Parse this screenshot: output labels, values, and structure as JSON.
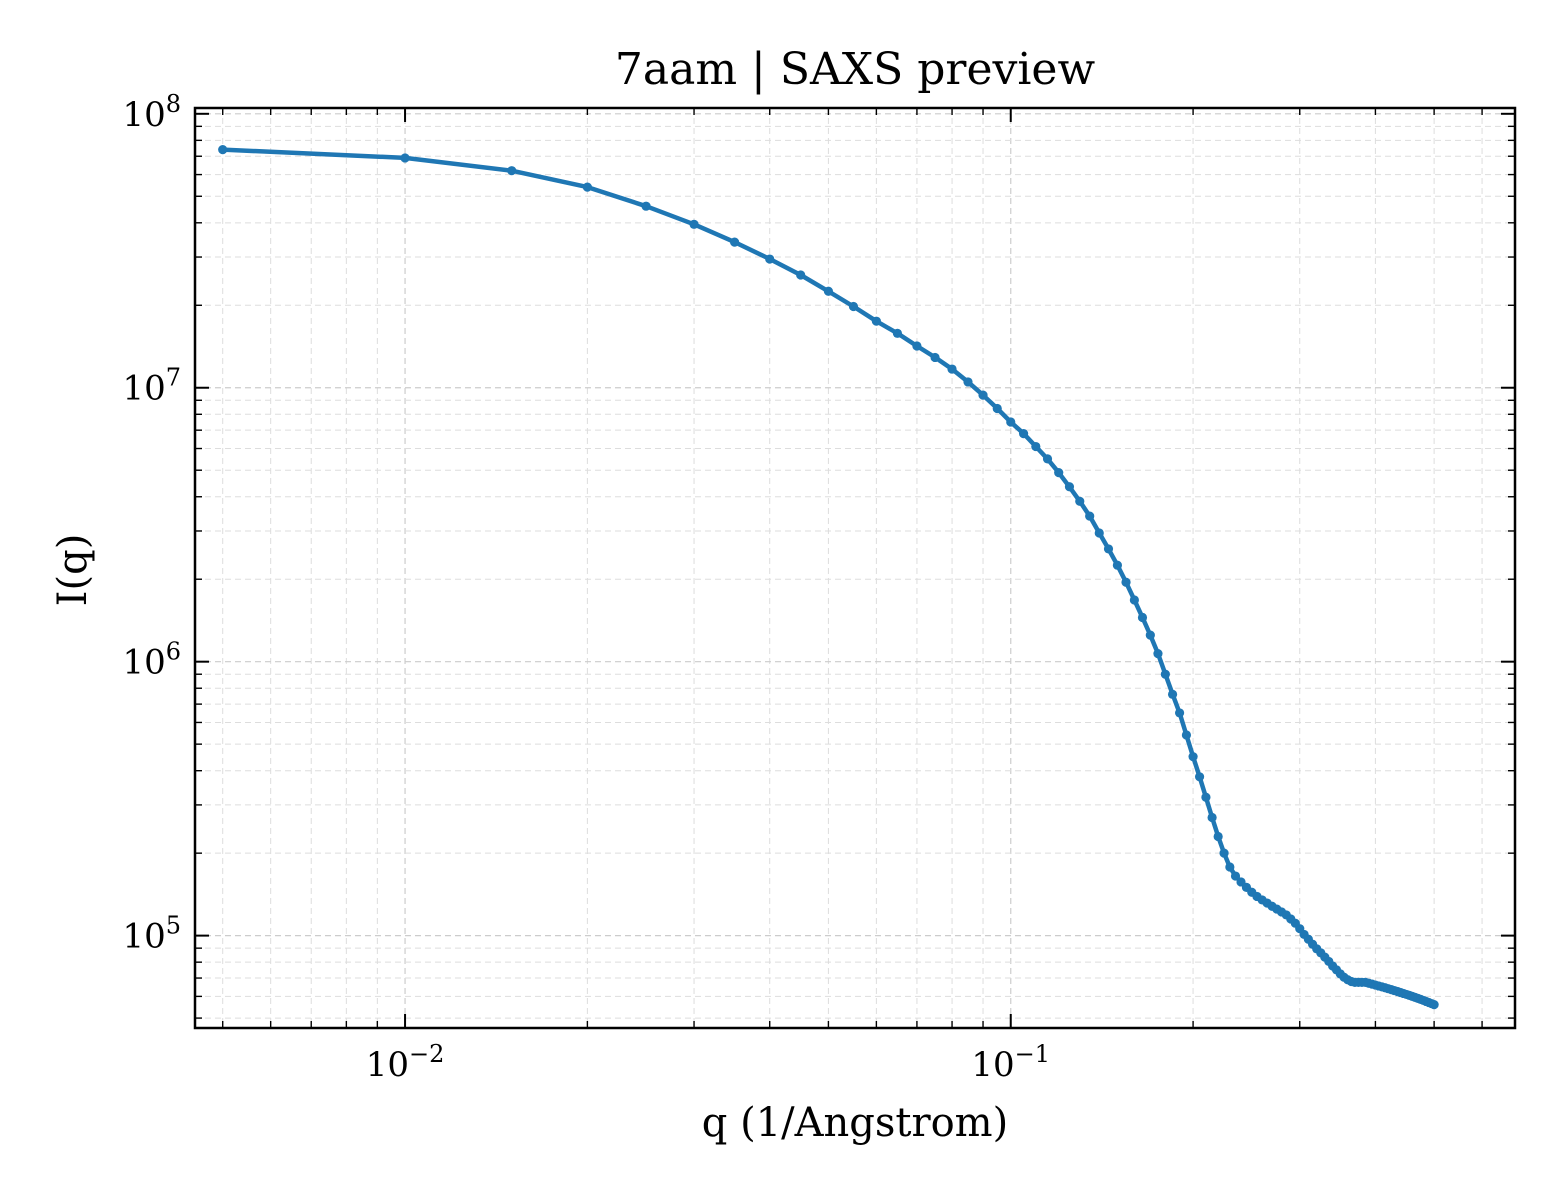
{
  "chart_data": {
    "type": "line",
    "title": "7aam | SAXS preview",
    "xlabel": "q (1/Angstrom)",
    "ylabel": "I(q)",
    "xscale": "log",
    "yscale": "log",
    "xlim": [
      0.0045,
      0.68
    ],
    "ylim": [
      46000,
      105000000
    ],
    "grid": true,
    "x_ticks": [
      {
        "value": 0.01,
        "base": "10",
        "exp": "−2"
      },
      {
        "value": 0.1,
        "base": "10",
        "exp": "−1"
      }
    ],
    "y_ticks": [
      {
        "value": 100000,
        "base": "10",
        "exp": "5"
      },
      {
        "value": 1000000,
        "base": "10",
        "exp": "6"
      },
      {
        "value": 10000000,
        "base": "10",
        "exp": "7"
      },
      {
        "value": 100000000,
        "base": "10",
        "exp": "8"
      }
    ],
    "series": [
      {
        "color": "#1f77b4",
        "x": [
          0.005,
          0.01,
          0.015,
          0.02,
          0.025,
          0.03,
          0.035,
          0.04,
          0.045,
          0.05,
          0.055,
          0.06,
          0.065,
          0.07,
          0.075,
          0.08,
          0.085,
          0.09,
          0.095,
          0.1,
          0.105,
          0.11,
          0.115,
          0.12,
          0.125,
          0.13,
          0.135,
          0.14,
          0.145,
          0.15,
          0.155,
          0.16,
          0.165,
          0.17,
          0.175,
          0.18,
          0.185,
          0.19,
          0.195,
          0.2,
          0.205,
          0.21,
          0.215,
          0.22,
          0.225,
          0.23,
          0.235,
          0.24,
          0.245,
          0.25,
          0.255,
          0.26,
          0.265,
          0.27,
          0.275,
          0.28,
          0.285,
          0.29,
          0.295,
          0.3,
          0.305,
          0.31,
          0.315,
          0.32,
          0.325,
          0.33,
          0.335,
          0.34,
          0.345,
          0.35,
          0.355,
          0.36,
          0.365,
          0.37,
          0.375,
          0.38,
          0.385,
          0.39,
          0.395,
          0.4,
          0.405,
          0.41,
          0.415,
          0.42,
          0.425,
          0.43,
          0.435,
          0.44,
          0.445,
          0.45,
          0.455,
          0.46,
          0.465,
          0.47,
          0.475,
          0.48,
          0.485,
          0.49,
          0.495,
          0.5
        ],
        "y": [
          74000000,
          69000000,
          62000000,
          54000000,
          46000000,
          39500000,
          34000000,
          29500000,
          25800000,
          22500000,
          19800000,
          17500000,
          15800000,
          14200000,
          12900000,
          11700000,
          10500000,
          9400000,
          8400000,
          7500000,
          6800000,
          6100000,
          5500000,
          4900000,
          4350000,
          3850000,
          3400000,
          2950000,
          2580000,
          2250000,
          1950000,
          1680000,
          1450000,
          1250000,
          1070000,
          900000,
          760000,
          650000,
          540000,
          450000,
          380000,
          320000,
          270000,
          230000,
          200000,
          178000,
          165000,
          157000,
          150000,
          144000,
          139000,
          135000,
          131500,
          128000,
          125000,
          122000,
          119000,
          115000,
          111000,
          106000,
          101000,
          97000,
          93000,
          89500,
          86500,
          83500,
          80500,
          77500,
          75000,
          72500,
          70500,
          69000,
          68000,
          67500,
          67500,
          67500,
          67500,
          67000,
          66500,
          66000,
          65500,
          65000,
          64500,
          64000,
          63500,
          63000,
          62500,
          62000,
          61500,
          61000,
          60500,
          60000,
          59500,
          59000,
          58500,
          58000,
          57500,
          57000,
          56500,
          56000
        ]
      }
    ]
  }
}
